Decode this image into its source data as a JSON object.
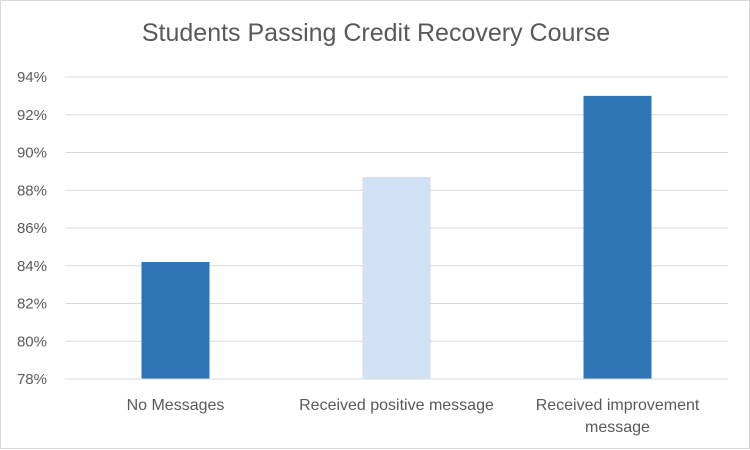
{
  "chart_data": {
    "type": "bar",
    "title": "Students Passing Credit Recovery Course",
    "categories": [
      [
        "No Messages"
      ],
      [
        "Received positive message"
      ],
      [
        "Received improvement",
        "message"
      ]
    ],
    "values": [
      84.2,
      88.7,
      93.0
    ],
    "bar_colors": [
      "#2e75b6",
      "#cfe1f2",
      "#2e75b6"
    ],
    "ylim": [
      78,
      94
    ],
    "yticks": [
      78,
      80,
      82,
      84,
      86,
      88,
      90,
      92,
      94
    ],
    "ytick_labels": [
      "78%",
      "80%",
      "82%",
      "84%",
      "86%",
      "88%",
      "90%",
      "92%",
      "94%"
    ],
    "grid": true,
    "xlabel": "",
    "ylabel": ""
  }
}
